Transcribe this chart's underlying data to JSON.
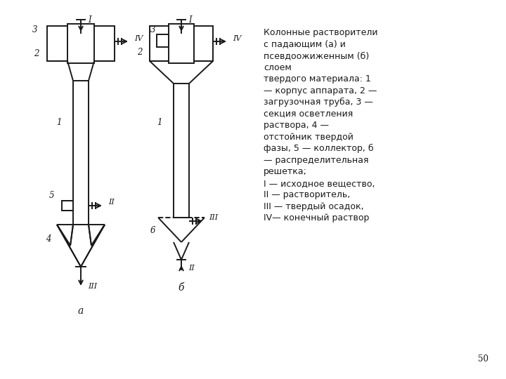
{
  "bg_color": "#ffffff",
  "line_color": "#1a1a1a",
  "text_color": "#1a1a1a",
  "caption_text": "Колонные растворители\nс падающим (а) и\nпсевдоожиженным (б)\nслоем\nтвердого материала: 1\n— корпус аппарата, 2 —\nзагрузочная труба, 3 —\nсекция осветления\nраствора, 4 —\nотстойник твердой\nфазы, 5 — коллектор, б\n— распределительная\nрешетка;\nI — исходное вещество,\nII — растворитель,\nIII — твердый осадок,\nIV— конечный раствор",
  "label_a": "а",
  "label_b": "б",
  "page_number": "50"
}
